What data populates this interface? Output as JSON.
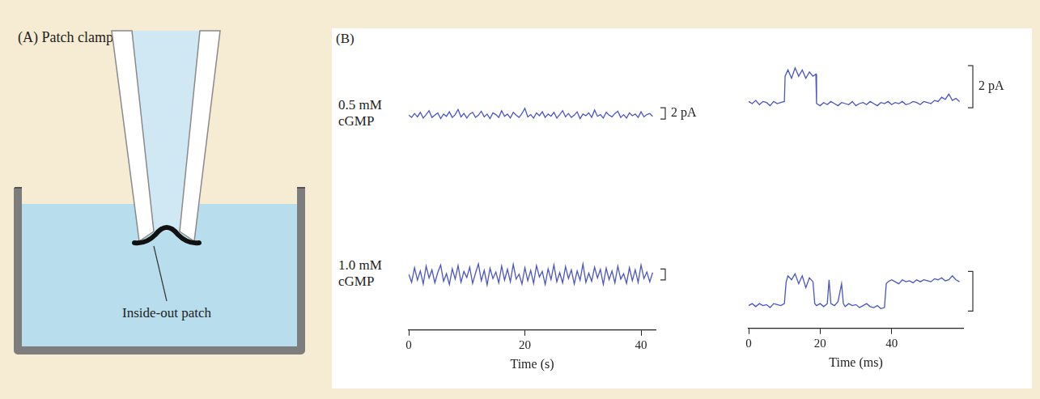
{
  "figure": {
    "panel_a": {
      "letter": "(A)",
      "title": "Patch clamp",
      "label": "Inside-out patch"
    },
    "panel_b": {
      "letter": "(B)",
      "rows": [
        "0.5 mM cGMP",
        "1.0 mM cGMP"
      ]
    }
  },
  "chart_data": [
    {
      "type": "line",
      "row": 0,
      "color": "#4a55c4",
      "grid": false,
      "tick_labels": false,
      "xlim": [
        0,
        42.5
      ],
      "ylim": [
        -4,
        4
      ],
      "scale_bar": {
        "value": 2,
        "label": "2 pA"
      },
      "x": [
        0,
        0.5,
        1,
        1.5,
        2,
        2.5,
        3,
        3.5,
        4,
        4.5,
        5,
        5.5,
        6,
        6.5,
        7,
        7.5,
        8,
        8.5,
        9,
        9.5,
        10,
        10.5,
        11,
        11.5,
        12,
        12.5,
        13,
        13.5,
        14,
        14.5,
        15,
        15.5,
        16,
        16.5,
        17,
        17.5,
        18,
        18.5,
        19,
        19.5,
        20,
        20.5,
        21,
        21.5,
        22,
        22.5,
        23,
        23.5,
        24,
        24.5,
        25,
        25.5,
        26,
        26.5,
        27,
        27.5,
        28,
        28.5,
        29,
        29.5,
        30,
        30.5,
        31,
        31.5,
        32,
        32.5,
        33,
        33.5,
        34,
        34.5,
        35,
        35.5,
        36,
        36.5,
        37,
        37.5,
        38,
        38.5,
        39,
        39.5,
        40,
        40.5,
        41,
        41.5,
        42
      ],
      "values": [
        0.1,
        -0.3,
        0.4,
        -0.2,
        0.6,
        -0.4,
        0.2,
        0.9,
        -0.3,
        0.1,
        0.5,
        -0.5,
        0.3,
        -0.1,
        0.7,
        -0.3,
        0.2,
        1.1,
        -0.2,
        0.4,
        -0.4,
        0.3,
        0.6,
        -0.3,
        0.1,
        0.8,
        -0.2,
        0.3,
        -0.5,
        0.5,
        0.2,
        -0.3,
        0.9,
        -0.1,
        0.3,
        -0.4,
        0.6,
        0.1,
        -0.3,
        0.4,
        1.3,
        -0.2,
        0.2,
        -0.4,
        0.5,
        0.0,
        0.7,
        -0.3,
        0.3,
        -0.1,
        0.6,
        -0.4,
        0.2,
        0.9,
        -0.2,
        0.4,
        -0.3,
        0.1,
        0.7,
        -0.5,
        0.3,
        0.0,
        0.5,
        -0.3,
        1.0,
        -0.1,
        0.2,
        -0.4,
        0.6,
        0.1,
        -0.2,
        0.4,
        0.8,
        -0.3,
        0.2,
        -0.4,
        0.5,
        0.0,
        0.3,
        -0.3,
        0.7,
        -0.2,
        0.2,
        0.4,
        -0.1
      ]
    },
    {
      "type": "line",
      "row": 0,
      "color": "#4a55c4",
      "grid": false,
      "tick_labels": false,
      "xlim": [
        0,
        60
      ],
      "ylim": [
        -1,
        3
      ],
      "scale_bar": {
        "value": 2,
        "label": "2 pA"
      },
      "x": [
        0,
        1,
        2,
        3,
        4,
        5,
        6,
        7,
        8,
        9,
        10,
        10.2,
        11,
        12,
        13,
        14,
        15,
        16,
        17,
        18,
        18.8,
        19,
        20,
        21,
        22,
        23,
        24,
        25,
        26,
        27,
        28,
        29,
        30,
        31,
        32,
        33,
        34,
        35,
        36,
        37,
        38,
        39,
        40,
        41,
        42,
        43,
        44,
        45,
        46,
        47,
        48,
        49,
        50,
        51,
        52,
        53,
        54,
        55,
        56,
        57,
        58,
        59
      ],
      "values": [
        0.1,
        0.0,
        0.15,
        -0.05,
        0.1,
        0.05,
        -0.1,
        0.1,
        0.0,
        0.05,
        0.1,
        1.3,
        1.6,
        1.2,
        1.7,
        1.3,
        1.6,
        1.2,
        1.5,
        1.3,
        1.4,
        0.0,
        -0.1,
        0.05,
        -0.05,
        0.1,
        0.0,
        -0.1,
        0.05,
        0.0,
        -0.05,
        0.1,
        -0.1,
        0.0,
        0.05,
        -0.05,
        0.1,
        0.0,
        -0.1,
        0.05,
        0.0,
        0.1,
        -0.05,
        0.05,
        0.0,
        0.1,
        -0.05,
        0.0,
        0.1,
        0.05,
        -0.05,
        0.1,
        0.05,
        0.0,
        0.15,
        0.1,
        0.3,
        0.2,
        0.45,
        0.15,
        0.25,
        0.1
      ]
    },
    {
      "type": "line",
      "row": 1,
      "color": "#4a55c4",
      "grid": false,
      "tick_labels": "x",
      "xlim": [
        0,
        42.5
      ],
      "ylim": [
        -10,
        4
      ],
      "xticks": [
        0,
        20,
        40
      ],
      "xlabel": "Time (s)",
      "scale_bar": {
        "value": 2
      },
      "x": [
        0,
        0.5,
        1,
        1.5,
        2,
        2.5,
        3,
        3.5,
        4,
        4.5,
        5,
        5.5,
        6,
        6.5,
        7,
        7.5,
        8,
        8.5,
        9,
        9.5,
        10,
        10.5,
        11,
        11.5,
        12,
        12.5,
        13,
        13.5,
        14,
        14.5,
        15,
        15.5,
        16,
        16.5,
        17,
        17.5,
        18,
        18.5,
        19,
        19.5,
        20,
        20.5,
        21,
        21.5,
        22,
        22.5,
        23,
        23.5,
        24,
        24.5,
        25,
        25.5,
        26,
        26.5,
        27,
        27.5,
        28,
        28.5,
        29,
        29.5,
        30,
        30.5,
        31,
        31.5,
        32,
        32.5,
        33,
        33.5,
        34,
        34.5,
        35,
        35.5,
        36,
        36.5,
        37,
        37.5,
        38,
        38.5,
        39,
        39.5,
        40,
        40.5,
        41,
        41.5,
        42
      ],
      "values": [
        0.3,
        -1.2,
        1.5,
        -0.8,
        0.9,
        -1.5,
        1.8,
        -0.4,
        1.1,
        -1.3,
        0.6,
        2.0,
        -1.0,
        0.4,
        -1.6,
        1.3,
        -0.6,
        1.9,
        -1.2,
        0.8,
        -0.3,
        1.6,
        -1.4,
        0.5,
        2.2,
        -0.9,
        1.0,
        -1.7,
        1.4,
        -0.5,
        0.7,
        -1.3,
        1.8,
        -0.8,
        1.2,
        -1.1,
        2.1,
        -0.6,
        0.3,
        -1.5,
        1.5,
        -0.9,
        1.0,
        -1.4,
        1.9,
        -0.2,
        0.8,
        -1.6,
        1.3,
        -0.7,
        2.0,
        -1.1,
        0.6,
        -1.3,
        1.7,
        -0.5,
        1.1,
        -1.5,
        0.9,
        -0.8,
        2.2,
        -1.2,
        0.5,
        -1.0,
        1.6,
        -0.4,
        1.2,
        -1.6,
        1.4,
        -0.7,
        0.9,
        -1.3,
        1.8,
        -0.6,
        0.4,
        -1.4,
        1.5,
        -0.9,
        1.1,
        -1.2,
        2.0,
        -0.5,
        0.7,
        -1.1,
        0.6
      ]
    },
    {
      "type": "line",
      "row": 1,
      "color": "#4a55c4",
      "grid": false,
      "tick_labels": "x",
      "xlim": [
        0,
        60
      ],
      "ylim": [
        -1.15,
        3
      ],
      "xticks": [
        0,
        20,
        40
      ],
      "xlabel": "Time (ms)",
      "scale_bar": {
        "value": 2
      },
      "x": [
        0,
        1,
        2,
        3,
        4,
        5,
        6,
        7,
        8,
        9,
        10,
        10.5,
        11,
        12,
        13,
        14,
        15,
        16,
        17,
        18,
        18.5,
        19,
        20,
        21,
        22,
        22.5,
        23,
        24,
        25,
        26,
        26.5,
        27,
        28,
        29,
        30,
        31,
        32,
        33,
        34,
        35,
        36,
        37,
        38,
        38.5,
        39,
        40,
        41,
        42,
        43,
        44,
        45,
        46,
        47,
        48,
        49,
        50,
        51,
        52,
        53,
        54,
        55,
        56,
        57,
        58,
        59
      ],
      "values": [
        0.0,
        0.1,
        -0.05,
        0.1,
        0.0,
        0.05,
        -0.1,
        0.1,
        0.05,
        0.0,
        0.1,
        1.2,
        1.5,
        1.3,
        1.6,
        1.1,
        1.5,
        0.9,
        1.4,
        1.2,
        0.1,
        0.0,
        0.1,
        -0.05,
        0.1,
        1.3,
        0.1,
        0.0,
        0.2,
        1.1,
        0.1,
        -0.05,
        0.1,
        0.0,
        0.05,
        -0.1,
        0.0,
        0.1,
        -0.05,
        -0.1,
        0.0,
        -0.15,
        -0.1,
        1.1,
        1.2,
        1.3,
        1.2,
        1.1,
        1.3,
        1.2,
        1.25,
        1.15,
        1.3,
        1.2,
        1.3,
        1.25,
        1.2,
        1.35,
        1.3,
        1.4,
        1.25,
        1.3,
        1.5,
        1.3,
        1.2
      ]
    }
  ]
}
